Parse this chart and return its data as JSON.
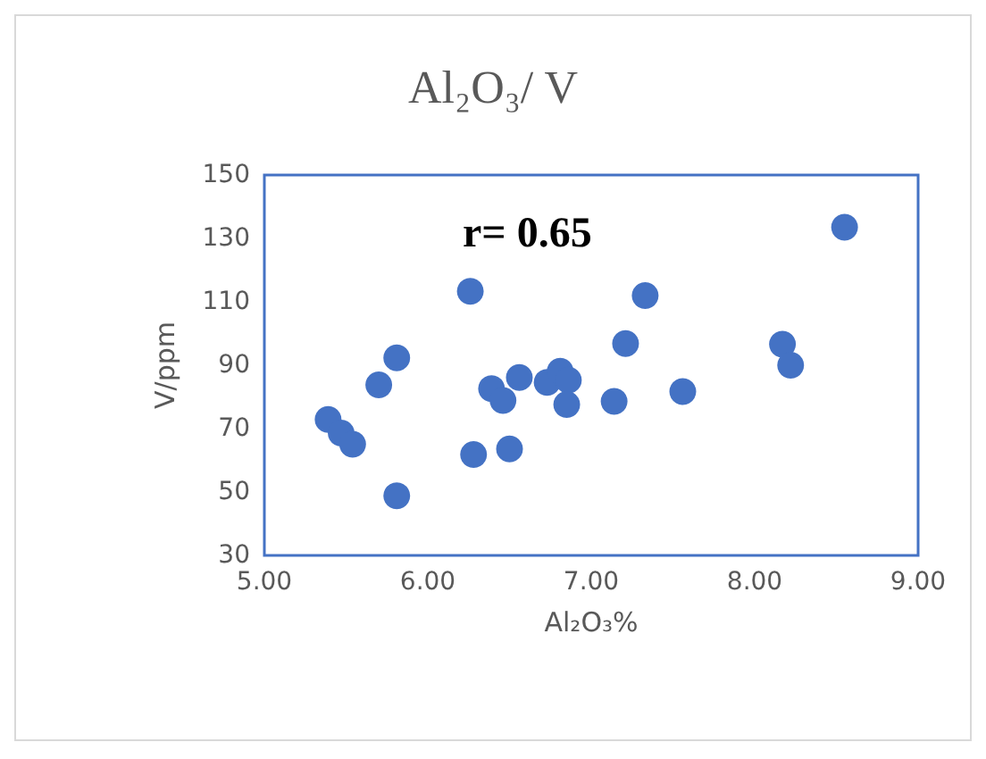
{
  "chart_data": {
    "type": "scatter",
    "title": "Al₂O₃/ V",
    "xlabel": "Al₂O₃%",
    "ylabel": "V/ppm",
    "annotations": [
      "r= 0.65"
    ],
    "x": [
      5.39,
      5.47,
      5.54,
      5.7,
      5.81,
      5.81,
      6.26,
      6.28,
      6.5,
      6.39,
      6.46,
      6.56,
      6.73,
      6.81,
      6.86,
      6.85,
      7.14,
      7.21,
      7.33,
      7.56,
      8.17,
      8.22,
      8.55
    ],
    "values": [
      72.9,
      68.6,
      65.1,
      83.8,
      92.3,
      48.8,
      113.3,
      61.8,
      63.6,
      82.6,
      78.9,
      86.1,
      84.6,
      88.1,
      85.3,
      77.6,
      78.6,
      96.8,
      112.0,
      81.7,
      96.6,
      90.0,
      133.5
    ],
    "color": "#4472c4",
    "marker": "circle",
    "grid": false,
    "xlim": [
      5,
      9
    ],
    "xticks": [
      {
        "value": 5,
        "label": "5.00"
      },
      {
        "value": 6,
        "label": "6.00"
      },
      {
        "value": 7,
        "label": "7.00"
      },
      {
        "value": 8,
        "label": "8.00"
      },
      {
        "value": 9,
        "label": "9.00"
      }
    ],
    "ylim": [
      30,
      150
    ],
    "yticks": [
      30,
      50,
      70,
      90,
      110,
      130,
      150
    ]
  }
}
